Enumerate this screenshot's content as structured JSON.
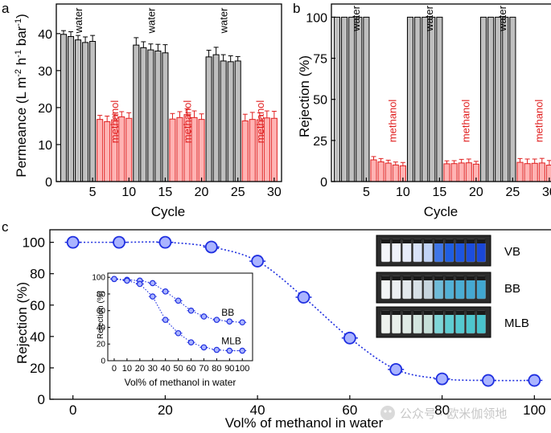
{
  "chart_data": [
    {
      "panel": "a",
      "type": "bar",
      "xlabel": "Cycle",
      "ylabel_main": "Permeance (L m",
      "ylabel_sup1": "-2",
      "ylabel_mid1": " h",
      "ylabel_sup2": "-1",
      "ylabel_mid2": " bar",
      "ylabel_sup3": "-1",
      "ylabel_end": ")",
      "ylim": [
        0,
        48
      ],
      "yticks": [
        0,
        10,
        20,
        30,
        40
      ],
      "xticks": [
        5,
        10,
        15,
        20,
        25,
        30
      ],
      "cycles": [
        1,
        2,
        3,
        4,
        5,
        6,
        7,
        8,
        9,
        10,
        11,
        12,
        13,
        14,
        15,
        16,
        17,
        18,
        19,
        20,
        21,
        22,
        23,
        24,
        25,
        26,
        27,
        28,
        29,
        30
      ],
      "values": [
        39.8,
        39.2,
        38.3,
        37.6,
        37.9,
        16.8,
        16.2,
        16.7,
        17.5,
        17.1,
        36.9,
        36.2,
        35.6,
        35.3,
        34.8,
        16.9,
        17.3,
        18.1,
        17.3,
        16.8,
        33.7,
        34.3,
        32.6,
        32.4,
        32.6,
        16.4,
        16.8,
        16.7,
        17.2,
        17.1
      ],
      "errors": [
        1.0,
        1.3,
        1.2,
        1.5,
        1.6,
        1.1,
        1.5,
        1.5,
        1.4,
        1.5,
        2.0,
        1.6,
        1.6,
        1.8,
        2.2,
        1.5,
        1.6,
        1.6,
        1.8,
        1.5,
        1.8,
        2.0,
        1.7,
        1.6,
        1.2,
        1.8,
        1.9,
        1.9,
        1.9,
        1.9
      ],
      "solvent": [
        "water",
        "water",
        "water",
        "water",
        "water",
        "methanol",
        "methanol",
        "methanol",
        "methanol",
        "methanol",
        "water",
        "water",
        "water",
        "water",
        "water",
        "methanol",
        "methanol",
        "methanol",
        "methanol",
        "methanol",
        "water",
        "water",
        "water",
        "water",
        "water",
        "methanol",
        "methanol",
        "methanol",
        "methanol",
        "methanol"
      ],
      "annotations": [
        {
          "text": "water",
          "cycle": 3,
          "y": 47,
          "color": "black"
        },
        {
          "text": "water",
          "cycle": 13,
          "y": 47,
          "color": "black"
        },
        {
          "text": "water",
          "cycle": 23,
          "y": 47,
          "color": "black"
        },
        {
          "text": "methanol",
          "cycle": 8,
          "y": 22,
          "color": "red"
        },
        {
          "text": "methanol",
          "cycle": 18,
          "y": 22,
          "color": "red"
        },
        {
          "text": "methanol",
          "cycle": 28,
          "y": 22,
          "color": "red"
        }
      ]
    },
    {
      "panel": "b",
      "type": "bar",
      "xlabel": "Cycle",
      "ylabel": "Rejection (%)",
      "ylim": [
        0,
        108
      ],
      "yticks": [
        0,
        25,
        50,
        75,
        100
      ],
      "xticks": [
        5,
        10,
        15,
        20,
        25,
        30
      ],
      "cycles": [
        1,
        2,
        3,
        4,
        5,
        6,
        7,
        8,
        9,
        10,
        11,
        12,
        13,
        14,
        15,
        16,
        17,
        18,
        19,
        20,
        21,
        22,
        23,
        24,
        25,
        26,
        27,
        28,
        29,
        30
      ],
      "values": [
        100,
        100,
        100,
        100,
        100,
        13.2,
        12.0,
        11.2,
        10.1,
        9.6,
        100,
        100,
        100,
        100,
        100,
        10.8,
        10.9,
        11.3,
        11.4,
        10.6,
        100,
        100,
        100,
        100,
        100,
        11.7,
        10.9,
        11.1,
        11.3,
        10.0
      ],
      "errors": [
        0,
        0,
        0,
        0,
        0,
        2.0,
        2.0,
        1.8,
        1.8,
        2.0,
        0,
        0,
        0,
        0,
        0,
        1.8,
        1.8,
        2.2,
        2.3,
        1.7,
        0,
        0,
        0,
        0,
        0,
        2.3,
        2.8,
        2.6,
        2.8,
        2.8
      ],
      "solvent": [
        "water",
        "water",
        "water",
        "water",
        "water",
        "methanol",
        "methanol",
        "methanol",
        "methanol",
        "methanol",
        "water",
        "water",
        "water",
        "water",
        "water",
        "methanol",
        "methanol",
        "methanol",
        "methanol",
        "methanol",
        "water",
        "water",
        "water",
        "water",
        "water",
        "methanol",
        "methanol",
        "methanol",
        "methanol",
        "methanol"
      ],
      "annotations": [
        {
          "text": "water",
          "cycle": 3.5,
          "y": 107,
          "color": "black"
        },
        {
          "text": "water",
          "cycle": 13.5,
          "y": 107,
          "color": "black"
        },
        {
          "text": "water",
          "cycle": 23.5,
          "y": 107,
          "color": "black"
        },
        {
          "text": "methanol",
          "cycle": 8.5,
          "y": 50,
          "color": "red"
        },
        {
          "text": "methanol",
          "cycle": 18.5,
          "y": 50,
          "color": "red"
        },
        {
          "text": "methanol",
          "cycle": 28.5,
          "y": 50,
          "color": "red"
        }
      ]
    },
    {
      "panel": "c",
      "type": "line",
      "xlabel": "Vol% of methanol in water",
      "ylabel": "Rejection (%)",
      "xlim": [
        -5,
        105
      ],
      "ylim": [
        0,
        108
      ],
      "xticks": [
        0,
        20,
        40,
        60,
        80,
        100
      ],
      "yticks": [
        0,
        20,
        40,
        60,
        80,
        100
      ],
      "x": [
        0,
        10,
        20,
        30,
        40,
        50,
        60,
        70,
        80,
        90,
        100
      ],
      "y": [
        100,
        100,
        100,
        97,
        88,
        65,
        39,
        19,
        13,
        12,
        12
      ],
      "color": "#1f2fe0",
      "photo_labels": [
        "VB",
        "BB",
        "MLB"
      ],
      "inset": {
        "type": "line",
        "xlabel": "Vol% of methanol in water",
        "ylabel": "Rejection (%)",
        "xlim": [
          -5,
          108
        ],
        "ylim": [
          0,
          105
        ],
        "xticks": [
          0,
          10,
          20,
          30,
          40,
          50,
          60,
          70,
          80,
          90,
          100
        ],
        "yticks": [
          0,
          20,
          40,
          60,
          80,
          100
        ],
        "series": [
          {
            "name": "BB",
            "x": [
              0,
              10,
              20,
              30,
              40,
              50,
              60,
              70,
              80,
              90,
              100
            ],
            "y": [
              98,
              97,
              96,
              93,
              83,
              72,
              60,
              53,
              49,
              47,
              46
            ]
          },
          {
            "name": "MLB",
            "x": [
              0,
              10,
              20,
              30,
              40,
              50,
              60,
              70,
              80,
              90,
              100
            ],
            "y": [
              98,
              96,
              92,
              77,
              49,
              33,
              22,
              16,
              13,
              12,
              12
            ]
          }
        ]
      }
    }
  ],
  "panels": {
    "a": "a",
    "b": "b",
    "c": "c"
  },
  "watermark": "公众号 · 欧米伽领地"
}
